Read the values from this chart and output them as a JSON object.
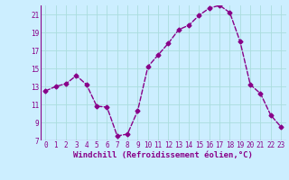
{
  "x": [
    0,
    1,
    2,
    3,
    4,
    5,
    6,
    7,
    8,
    9,
    10,
    11,
    12,
    13,
    14,
    15,
    16,
    17,
    18,
    19,
    20,
    21,
    22,
    23
  ],
  "y": [
    12.5,
    13.0,
    13.3,
    14.2,
    13.2,
    10.8,
    10.7,
    7.5,
    7.7,
    10.3,
    15.2,
    16.5,
    17.8,
    19.3,
    19.8,
    20.9,
    21.7,
    22.0,
    21.2,
    18.0,
    13.2,
    12.2,
    9.8,
    8.5
  ],
  "line_color": "#880088",
  "marker": "D",
  "marker_size": 2.5,
  "bg_color": "#cceeff",
  "grid_color": "#aadddd",
  "xlabel": "Windchill (Refroidissement éolien,°C)",
  "xlabel_color": "#880088",
  "tick_color": "#880088",
  "ylim": [
    7,
    22
  ],
  "xlim": [
    -0.5,
    23.5
  ],
  "yticks": [
    7,
    9,
    11,
    13,
    15,
    17,
    19,
    21
  ],
  "xticks": [
    0,
    1,
    2,
    3,
    4,
    5,
    6,
    7,
    8,
    9,
    10,
    11,
    12,
    13,
    14,
    15,
    16,
    17,
    18,
    19,
    20,
    21,
    22,
    23
  ],
  "linewidth": 1.0,
  "tick_fontsize": 5.5,
  "xlabel_fontsize": 6.5
}
